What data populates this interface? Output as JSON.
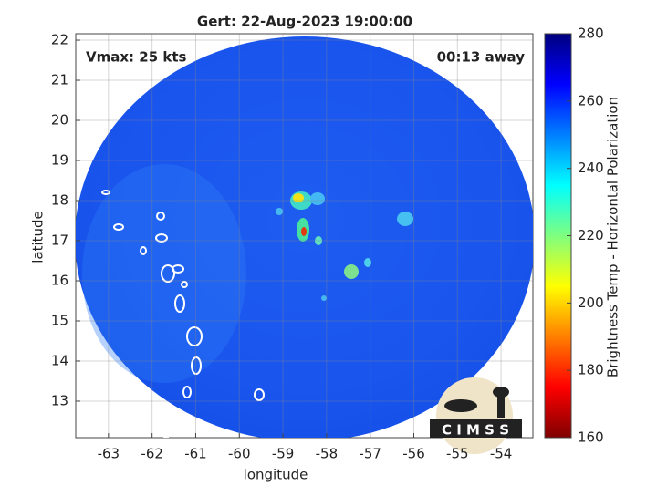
{
  "chart_data": {
    "type": "map",
    "title": "Gert: 22-Aug-2023 19:00:00",
    "xlabel": "longitude",
    "ylabel": "latitude",
    "xlim": [
      -63.75,
      -53.27
    ],
    "ylim": [
      12.09,
      22.16
    ],
    "xticks": [
      -63,
      -62,
      -61,
      -60,
      -59,
      -58,
      -57,
      -56,
      -55,
      -54
    ],
    "yticks": [
      13,
      14,
      15,
      16,
      17,
      18,
      19,
      20,
      21,
      22
    ],
    "grid": true,
    "annotations": [
      "Vmax: 25 kts",
      "00:13 away"
    ],
    "logo": "C I M S S",
    "colorbar": {
      "label": "Brightness Temp - Horizontal Polarization",
      "lim": [
        160,
        280
      ],
      "ticks": [
        160,
        180,
        200,
        220,
        240,
        260,
        280
      ],
      "colormap": [
        "#7f0000",
        "#ff0000",
        "#ff7f00",
        "#ffff00",
        "#7fff7f",
        "#00ffff",
        "#007fff",
        "#0000ff",
        "#00007f"
      ]
    }
  }
}
